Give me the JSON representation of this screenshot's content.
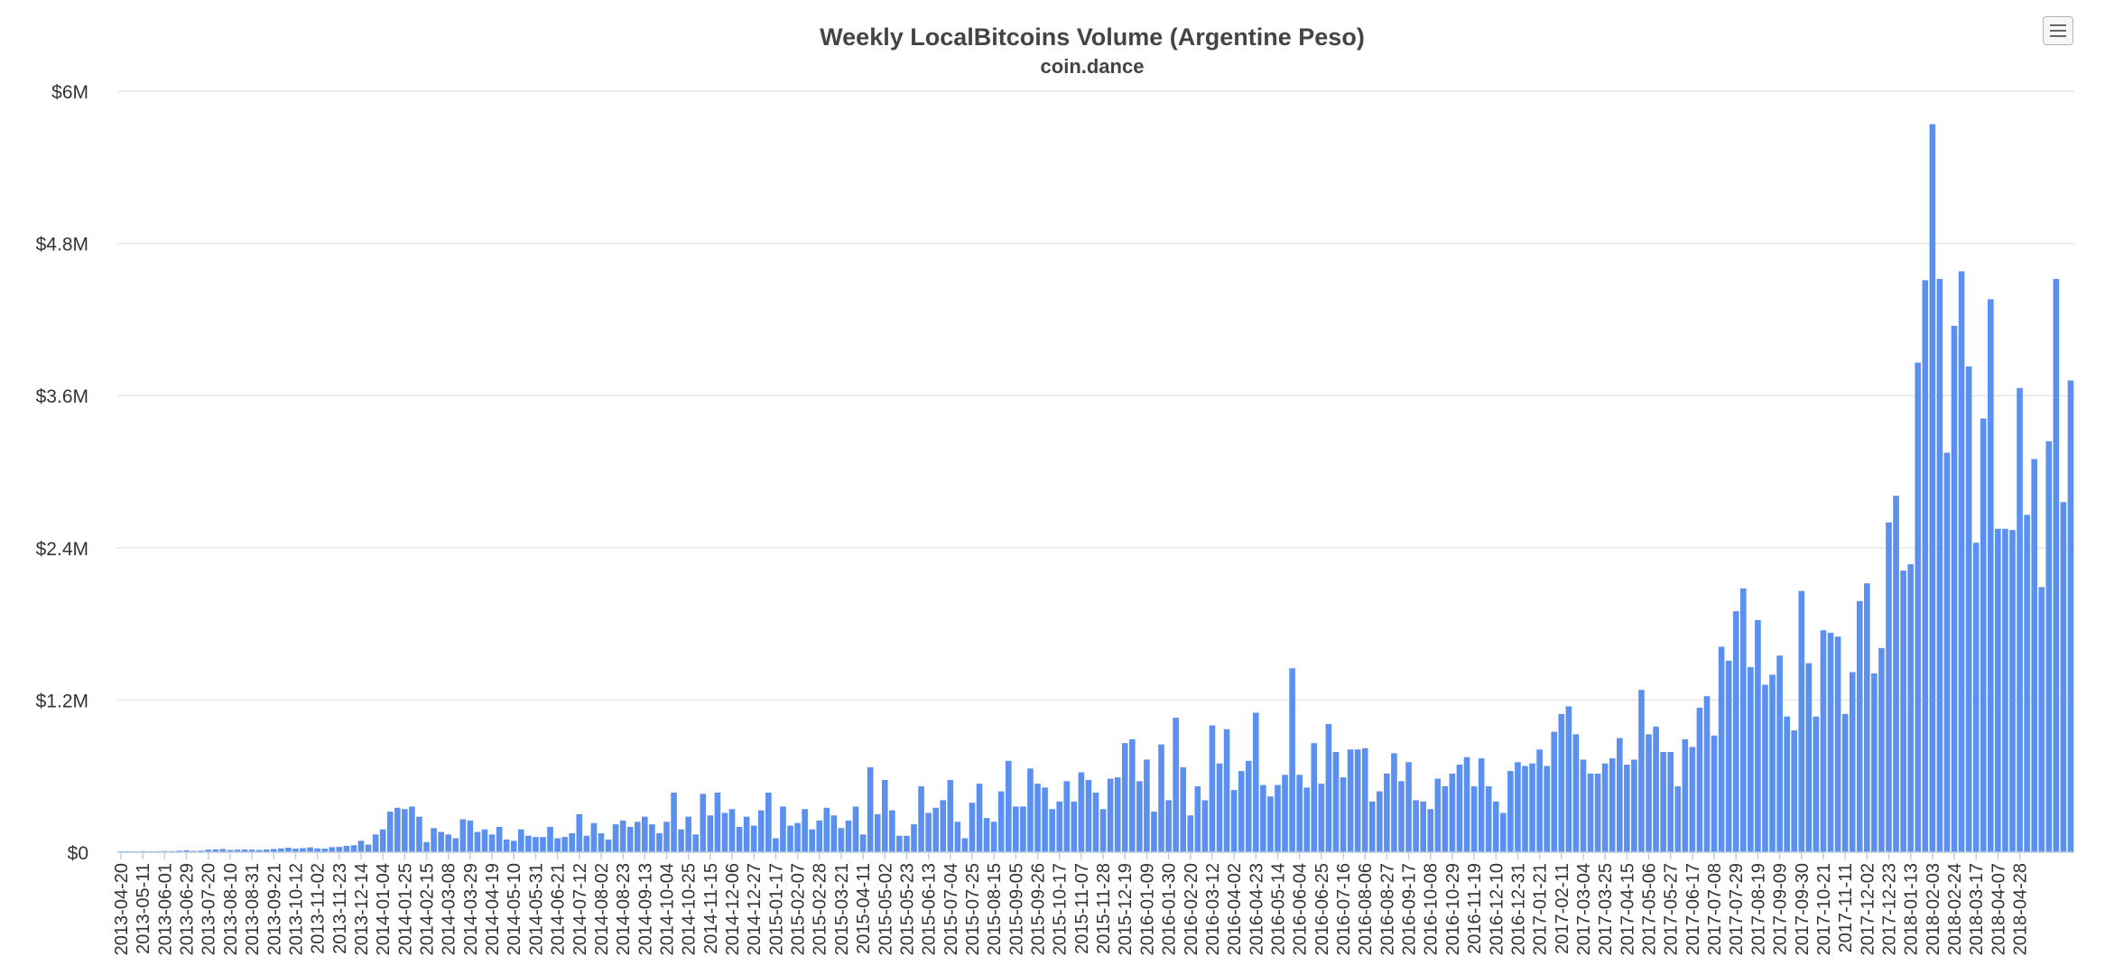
{
  "chart_data": {
    "type": "bar",
    "title": "Weekly LocalBitcoins Volume (Argentine Peso)",
    "subtitle": "coin.dance",
    "xlabel": "",
    "ylabel": "",
    "ylim": [
      0,
      6000000
    ],
    "yticks": [
      0,
      1200000,
      2400000,
      3600000,
      4800000,
      6000000
    ],
    "ytick_labels": [
      "$0",
      "$1.2M",
      "$2.4M",
      "$3.6M",
      "$4.8M",
      "$6M"
    ],
    "grid": true,
    "legend": "none",
    "color": "#5b8ff0",
    "first_week": "2013-04-20",
    "x_tick_labels": [
      "2013-04-20",
      "2013-05-11",
      "2013-06-01",
      "2013-06-29",
      "2013-07-20",
      "2013-08-10",
      "2013-08-31",
      "2013-09-21",
      "2013-10-12",
      "2013-11-02",
      "2013-11-23",
      "2013-12-14",
      "2014-01-04",
      "2014-01-25",
      "2014-02-15",
      "2014-03-08",
      "2014-03-29",
      "2014-04-19",
      "2014-05-10",
      "2014-05-31",
      "2014-06-21",
      "2014-07-12",
      "2014-08-02",
      "2014-08-23",
      "2014-09-13",
      "2014-10-04",
      "2014-10-25",
      "2014-11-15",
      "2014-12-06",
      "2014-12-27",
      "2015-01-17",
      "2015-02-07",
      "2015-02-28",
      "2015-03-21",
      "2015-04-11",
      "2015-05-02",
      "2015-05-23",
      "2015-06-13",
      "2015-07-04",
      "2015-07-25",
      "2015-08-15",
      "2015-09-05",
      "2015-09-26",
      "2015-10-17",
      "2015-11-07",
      "2015-11-28",
      "2015-12-19",
      "2016-01-09",
      "2016-01-30",
      "2016-02-20",
      "2016-03-12",
      "2016-04-02",
      "2016-04-23",
      "2016-05-14",
      "2016-06-04",
      "2016-06-25",
      "2016-07-16",
      "2016-08-06",
      "2016-08-27",
      "2016-09-17",
      "2016-10-08",
      "2016-10-29",
      "2016-11-19",
      "2016-12-10",
      "2016-12-31",
      "2017-01-21",
      "2017-02-11",
      "2017-03-04",
      "2017-03-25",
      "2017-04-15",
      "2017-05-06",
      "2017-05-27",
      "2017-06-17",
      "2017-07-08",
      "2017-07-29",
      "2017-08-19",
      "2017-09-09",
      "2017-09-30",
      "2017-10-21",
      "2017-11-11",
      "2017-12-02",
      "2017-12-23",
      "2018-01-13",
      "2018-02-03",
      "2018-02-24",
      "2018-03-17",
      "2018-04-07",
      "2018-04-28"
    ],
    "values": [
      8000,
      8000,
      6000,
      9000,
      7000,
      8000,
      10000,
      9000,
      12000,
      15000,
      10000,
      12000,
      20000,
      22000,
      25000,
      18000,
      20000,
      22000,
      20000,
      18000,
      22000,
      25000,
      30000,
      35000,
      28000,
      32000,
      38000,
      30000,
      28000,
      40000,
      42000,
      50000,
      55000,
      90000,
      60000,
      140000,
      180000,
      320000,
      350000,
      340000,
      360000,
      280000,
      80000,
      190000,
      160000,
      140000,
      110000,
      260000,
      250000,
      160000,
      180000,
      140000,
      200000,
      100000,
      90000,
      180000,
      130000,
      120000,
      120000,
      200000,
      110000,
      120000,
      150000,
      300000,
      130000,
      230000,
      150000,
      100000,
      220000,
      250000,
      200000,
      240000,
      280000,
      220000,
      150000,
      240000,
      470000,
      180000,
      280000,
      140000,
      460000,
      290000,
      470000,
      310000,
      340000,
      200000,
      280000,
      210000,
      330000,
      470000,
      110000,
      360000,
      210000,
      230000,
      340000,
      180000,
      250000,
      350000,
      290000,
      190000,
      250000,
      360000,
      140000,
      670000,
      300000,
      570000,
      330000,
      130000,
      130000,
      220000,
      520000,
      310000,
      350000,
      410000,
      570000,
      240000,
      110000,
      390000,
      540000,
      270000,
      240000,
      480000,
      720000,
      360000,
      360000,
      660000,
      540000,
      510000,
      340000,
      400000,
      560000,
      400000,
      630000,
      570000,
      470000,
      340000,
      580000,
      590000,
      860000,
      890000,
      560000,
      730000,
      320000,
      850000,
      410000,
      1060000,
      670000,
      290000,
      520000,
      410000,
      1000000,
      700000,
      970000,
      490000,
      640000,
      720000,
      1100000,
      530000,
      440000,
      530000,
      610000,
      1450000,
      610000,
      510000,
      860000,
      540000,
      1010000,
      790000,
      590000,
      810000,
      810000,
      820000,
      400000,
      480000,
      620000,
      780000,
      560000,
      710000,
      410000,
      400000,
      340000,
      580000,
      520000,
      620000,
      690000,
      750000,
      520000,
      740000,
      520000,
      400000,
      310000,
      640000,
      710000,
      680000,
      700000,
      810000,
      680000,
      950000,
      1090000,
      1150000,
      930000,
      730000,
      620000,
      620000,
      700000,
      740000,
      900000,
      690000,
      730000,
      1280000,
      930000,
      990000,
      790000,
      790000,
      520000,
      890000,
      830000,
      1140000,
      1230000,
      920000,
      1620000,
      1510000,
      1900000,
      2080000,
      1460000,
      1830000,
      1320000,
      1400000,
      1550000,
      1070000,
      960000,
      2060000,
      1490000,
      1070000,
      1750000,
      1730000,
      1700000,
      1090000,
      1420000,
      1980000,
      2120000,
      1410000,
      1610000,
      2600000,
      2810000,
      2220000,
      2270000,
      3860000,
      4510000,
      5740000,
      4520000,
      3150000,
      4150000,
      4580000,
      3830000,
      2440000,
      3420000,
      4360000,
      2550000,
      2550000,
      2540000,
      3660000,
      2660000,
      3100000,
      2090000,
      3240000,
      4520000,
      2760000,
      3720000
    ]
  },
  "ui": {
    "menu_icon": "hamburger-menu-icon",
    "background": "#ffffff",
    "grid_color": "#e6e6e6",
    "title_color": "#444444",
    "label_color": "#333333"
  }
}
